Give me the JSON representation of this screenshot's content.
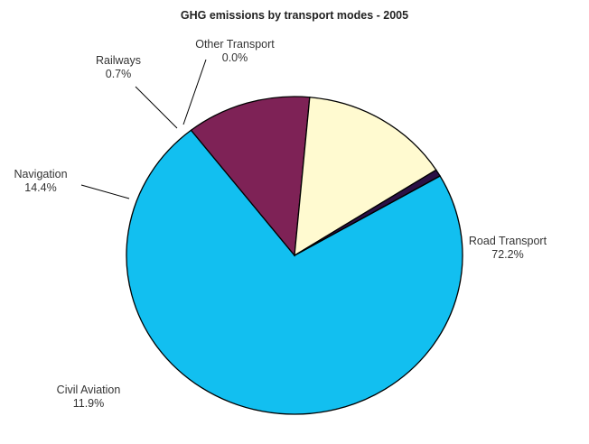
{
  "chart_data": {
    "type": "pie",
    "title": "GHG emissions by transport modes - 2005",
    "slices": [
      {
        "name": "Road Transport",
        "value_label": "72.2%",
        "value": 72.2,
        "color": "#12bff0"
      },
      {
        "name": "Civil Aviation",
        "value_label": "11.9%",
        "value": 11.9,
        "color": "#7e2256"
      },
      {
        "name": "Navigation",
        "value_label": "14.4%",
        "value": 14.4,
        "color": "#fffad0"
      },
      {
        "name": "Railways",
        "value_label": "0.7%",
        "value": 0.7,
        "color": "#2b1045"
      },
      {
        "name": "Other Transport",
        "value_label": "0.0%",
        "value": 0.0,
        "color": "#ffffff"
      }
    ]
  }
}
